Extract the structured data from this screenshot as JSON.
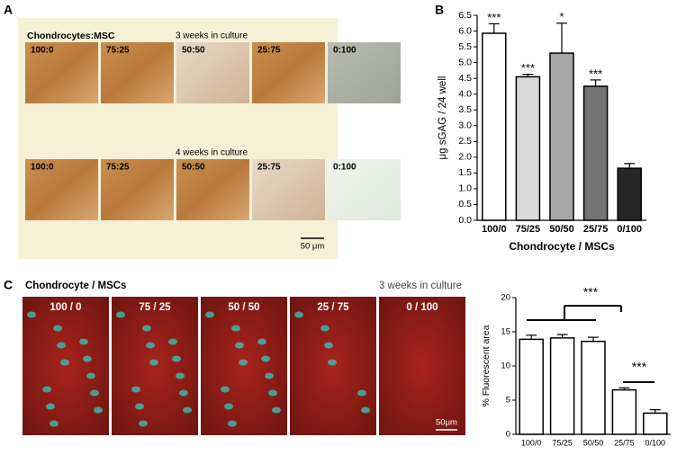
{
  "panel_labels": [
    "A",
    "B",
    "C"
  ],
  "panel_a": {
    "header": "Chondrocytes:MSC",
    "rows": [
      {
        "title": "3 weeks in culture",
        "ratios": [
          "100:0",
          "75:25",
          "50:50",
          "25:75",
          "0:100"
        ]
      },
      {
        "title": "4 weeks in culture",
        "ratios": [
          "100:0",
          "75:25",
          "50:50",
          "25:75",
          "0:100"
        ]
      }
    ],
    "scale_bar": "50 μm"
  },
  "panel_c": {
    "header": "Chondrocyte / MSCs",
    "title": "3 weeks in culture",
    "ratios": [
      "100 / 0",
      "75 / 25",
      "50 / 50",
      "25 / 75",
      "0 / 100"
    ],
    "scale_bar": "50μm"
  },
  "chart_data": [
    {
      "type": "bar",
      "ylabel": "μg sGAG / 24 well",
      "xlabel": "Chondrocyte / MSCs",
      "categories": [
        "100/0",
        "75/25",
        "50/50",
        "25/75",
        "0/100"
      ],
      "values": [
        5.93,
        4.55,
        5.3,
        4.25,
        1.65
      ],
      "errors": [
        0.3,
        0.08,
        0.95,
        0.2,
        0.15
      ],
      "colors": [
        "#ffffff",
        "#d9d9d9",
        "#a6a6a6",
        "#737373",
        "#262626"
      ],
      "annotations": [
        "***",
        "***",
        "*",
        "***",
        null
      ],
      "ylim": [
        0,
        6.5
      ],
      "yticks": [
        {
          "value": 0,
          "label": "0.0"
        },
        0.5,
        {
          "value": 1,
          "label": "1.0"
        },
        1.5,
        {
          "value": 2,
          "label": "2.0"
        },
        2.5,
        {
          "value": 3,
          "label": "3.0"
        },
        3.5,
        {
          "value": 4,
          "label": "4.0"
        },
        4.5,
        {
          "value": 5,
          "label": "5.0"
        },
        5.5,
        {
          "value": 6,
          "label": "6.0"
        },
        6.5
      ]
    },
    {
      "type": "bar",
      "ylabel": "% Fluorescent area",
      "categories": [
        "100/0",
        "75/25",
        "50/50",
        "25/75",
        "0/100"
      ],
      "values": [
        13.9,
        14.1,
        13.6,
        6.5,
        3.1
      ],
      "errors": [
        0.6,
        0.5,
        0.6,
        0.3,
        0.5
      ],
      "color": "#ffffff",
      "annotations": [
        "***",
        "***"
      ],
      "ylim": [
        0,
        20
      ],
      "yticks": [
        0,
        5,
        10,
        15,
        20
      ]
    }
  ]
}
